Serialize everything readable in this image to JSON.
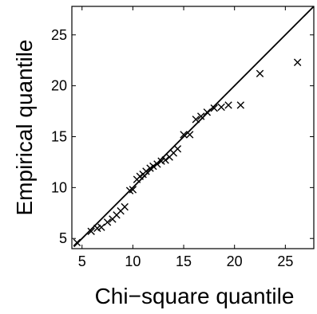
{
  "chart_data": {
    "type": "scatter",
    "title": "",
    "xlabel": "Chi−square quantile",
    "ylabel": "Empirical quantile",
    "xlim": [
      4,
      27.8
    ],
    "ylim": [
      4,
      27.8
    ],
    "xticks": [
      5,
      10,
      15,
      20,
      25
    ],
    "yticks": [
      5,
      10,
      15,
      20,
      25
    ],
    "grid": false,
    "marker": "x",
    "reference_line": {
      "type": "y=x",
      "from": 4.2,
      "to": 27.8
    },
    "series": [
      {
        "x": [
          4.5,
          5.9,
          6.5,
          6.9,
          7.5,
          8.0,
          8.4,
          8.8,
          9.2,
          9.7,
          10.0,
          10.4,
          10.7,
          11.0,
          11.3,
          11.7,
          12.0,
          12.4,
          12.8,
          13.2,
          13.6,
          14.0,
          14.4,
          15.0,
          15.6,
          16.2,
          16.7,
          17.3,
          18.0,
          18.7,
          19.4,
          20.6,
          22.5,
          26.2
        ],
        "y": [
          4.6,
          5.7,
          6.0,
          6.1,
          6.6,
          6.9,
          7.3,
          7.7,
          8.1,
          9.7,
          9.8,
          10.8,
          11.1,
          11.3,
          11.6,
          11.9,
          12.1,
          12.3,
          12.6,
          12.7,
          13.0,
          13.4,
          13.8,
          15.2,
          15.2,
          16.7,
          17.0,
          17.4,
          17.8,
          17.9,
          18.1,
          18.1,
          21.2,
          22.3
        ]
      }
    ]
  }
}
